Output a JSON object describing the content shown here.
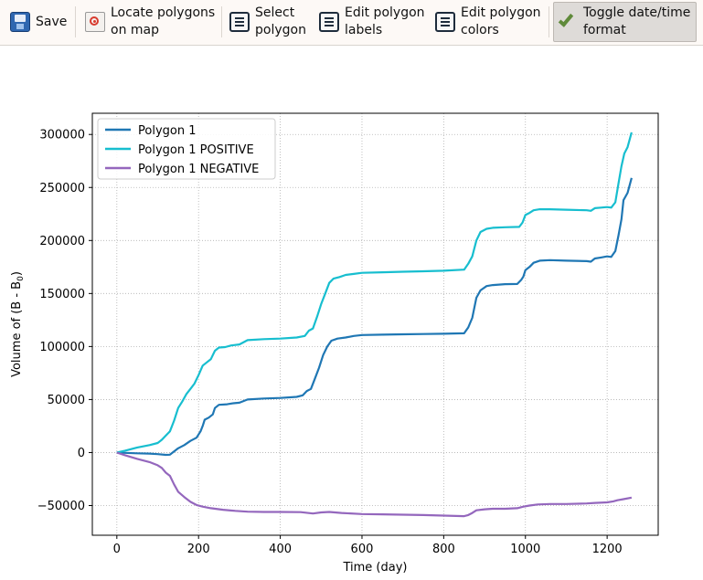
{
  "toolbar": {
    "buttons": [
      {
        "label": "Save",
        "icon": "save-icon"
      },
      {
        "label": "Locate polygons\non map",
        "icon": "locate-icon"
      },
      {
        "label": "Select\npolygon",
        "icon": "list-icon"
      },
      {
        "label": "Edit polygon\nlabels",
        "icon": "list-icon"
      },
      {
        "label": "Edit polygon\ncolors",
        "icon": "list-icon"
      },
      {
        "label": "Toggle date/time\nformat",
        "icon": "check-icon",
        "active": true
      }
    ]
  },
  "chart_data": {
    "type": "line",
    "xlabel": "Time (day)",
    "ylabel": "Volume of (B - B",
    "ylabel_subscript": "0",
    "ylabel_close": ")",
    "xlim": [
      -60,
      1325
    ],
    "ylim": [
      -78000,
      320000
    ],
    "x_ticks": [
      0,
      200,
      400,
      600,
      800,
      1000,
      1200
    ],
    "x_tick_labels": [
      "0",
      "200",
      "400",
      "600",
      "800",
      "1000",
      "1200"
    ],
    "y_ticks": [
      -50000,
      0,
      50000,
      100000,
      150000,
      200000,
      250000,
      300000
    ],
    "y_tick_labels": [
      "−50000",
      "0",
      "50000",
      "100000",
      "150000",
      "200000",
      "250000",
      "300000"
    ],
    "grid": true,
    "legend_position": "top-left",
    "series": [
      {
        "name": "Polygon 1",
        "color": "#1f77b4",
        "points": [
          [
            0,
            0
          ],
          [
            20,
            -300
          ],
          [
            50,
            -700
          ],
          [
            80,
            -1000
          ],
          [
            100,
            -1500
          ],
          [
            120,
            -2200
          ],
          [
            130,
            -2000
          ],
          [
            140,
            1000
          ],
          [
            150,
            4000
          ],
          [
            165,
            7000
          ],
          [
            180,
            11000
          ],
          [
            195,
            14000
          ],
          [
            205,
            20000
          ],
          [
            210,
            25000
          ],
          [
            215,
            31000
          ],
          [
            225,
            33000
          ],
          [
            235,
            36000
          ],
          [
            240,
            42000
          ],
          [
            250,
            45000
          ],
          [
            270,
            45500
          ],
          [
            285,
            46500
          ],
          [
            300,
            47000
          ],
          [
            320,
            50000
          ],
          [
            360,
            51000
          ],
          [
            400,
            51500
          ],
          [
            440,
            52500
          ],
          [
            455,
            54000
          ],
          [
            465,
            58000
          ],
          [
            475,
            60000
          ],
          [
            485,
            70000
          ],
          [
            495,
            80000
          ],
          [
            505,
            92000
          ],
          [
            515,
            100000
          ],
          [
            525,
            105500
          ],
          [
            540,
            107500
          ],
          [
            560,
            108500
          ],
          [
            580,
            110000
          ],
          [
            600,
            110800
          ],
          [
            650,
            111200
          ],
          [
            700,
            111500
          ],
          [
            750,
            111800
          ],
          [
            800,
            112000
          ],
          [
            850,
            112500
          ],
          [
            860,
            118000
          ],
          [
            870,
            127000
          ],
          [
            880,
            146000
          ],
          [
            890,
            153000
          ],
          [
            905,
            157000
          ],
          [
            920,
            158000
          ],
          [
            950,
            158800
          ],
          [
            980,
            159000
          ],
          [
            990,
            163000
          ],
          [
            995,
            166000
          ],
          [
            1000,
            172000
          ],
          [
            1010,
            175000
          ],
          [
            1020,
            179000
          ],
          [
            1035,
            181000
          ],
          [
            1060,
            181500
          ],
          [
            1100,
            181000
          ],
          [
            1150,
            180500
          ],
          [
            1160,
            180000
          ],
          [
            1170,
            183000
          ],
          [
            1185,
            184000
          ],
          [
            1200,
            185000
          ],
          [
            1210,
            184500
          ],
          [
            1220,
            190000
          ],
          [
            1228,
            205000
          ],
          [
            1235,
            220000
          ],
          [
            1240,
            238000
          ],
          [
            1250,
            245000
          ],
          [
            1260,
            259000
          ]
        ]
      },
      {
        "name": "Polygon 1 POSITIVE",
        "color": "#17becf",
        "points": [
          [
            0,
            0
          ],
          [
            20,
            1800
          ],
          [
            50,
            4800
          ],
          [
            80,
            7000
          ],
          [
            100,
            9000
          ],
          [
            110,
            12000
          ],
          [
            120,
            16000
          ],
          [
            130,
            20000
          ],
          [
            140,
            30000
          ],
          [
            150,
            42000
          ],
          [
            160,
            48000
          ],
          [
            170,
            55000
          ],
          [
            180,
            60000
          ],
          [
            190,
            65000
          ],
          [
            200,
            73000
          ],
          [
            210,
            82000
          ],
          [
            220,
            85000
          ],
          [
            230,
            88000
          ],
          [
            240,
            96000
          ],
          [
            250,
            99000
          ],
          [
            265,
            99500
          ],
          [
            280,
            101000
          ],
          [
            300,
            102000
          ],
          [
            320,
            106000
          ],
          [
            360,
            107000
          ],
          [
            400,
            107500
          ],
          [
            440,
            108500
          ],
          [
            460,
            110000
          ],
          [
            470,
            115000
          ],
          [
            480,
            117000
          ],
          [
            490,
            128000
          ],
          [
            500,
            140000
          ],
          [
            510,
            150000
          ],
          [
            520,
            160000
          ],
          [
            530,
            164000
          ],
          [
            545,
            165500
          ],
          [
            560,
            167500
          ],
          [
            580,
            168500
          ],
          [
            600,
            169500
          ],
          [
            650,
            170000
          ],
          [
            700,
            170500
          ],
          [
            750,
            171000
          ],
          [
            800,
            171500
          ],
          [
            850,
            172500
          ],
          [
            860,
            178000
          ],
          [
            870,
            185000
          ],
          [
            880,
            200000
          ],
          [
            890,
            208000
          ],
          [
            905,
            211000
          ],
          [
            920,
            212000
          ],
          [
            950,
            212500
          ],
          [
            985,
            212800
          ],
          [
            993,
            217000
          ],
          [
            1000,
            224000
          ],
          [
            1010,
            226000
          ],
          [
            1020,
            228500
          ],
          [
            1035,
            229500
          ],
          [
            1060,
            229500
          ],
          [
            1100,
            229000
          ],
          [
            1150,
            228500
          ],
          [
            1160,
            228000
          ],
          [
            1170,
            230500
          ],
          [
            1185,
            231000
          ],
          [
            1200,
            231500
          ],
          [
            1210,
            231000
          ],
          [
            1220,
            236000
          ],
          [
            1228,
            254000
          ],
          [
            1235,
            270000
          ],
          [
            1242,
            282000
          ],
          [
            1250,
            288000
          ],
          [
            1260,
            302000
          ]
        ]
      },
      {
        "name": "Polygon 1 NEGATIVE",
        "color": "#9467bd",
        "points": [
          [
            0,
            0
          ],
          [
            20,
            -2500
          ],
          [
            50,
            -6000
          ],
          [
            80,
            -9000
          ],
          [
            100,
            -12000
          ],
          [
            110,
            -14500
          ],
          [
            120,
            -19000
          ],
          [
            130,
            -22000
          ],
          [
            140,
            -30000
          ],
          [
            150,
            -37000
          ],
          [
            165,
            -42000
          ],
          [
            180,
            -46500
          ],
          [
            195,
            -49500
          ],
          [
            210,
            -51000
          ],
          [
            230,
            -52500
          ],
          [
            260,
            -54000
          ],
          [
            290,
            -55000
          ],
          [
            320,
            -55800
          ],
          [
            360,
            -56000
          ],
          [
            400,
            -56000
          ],
          [
            450,
            -56200
          ],
          [
            480,
            -57500
          ],
          [
            500,
            -56500
          ],
          [
            520,
            -56000
          ],
          [
            550,
            -57000
          ],
          [
            600,
            -58000
          ],
          [
            650,
            -58300
          ],
          [
            700,
            -58600
          ],
          [
            750,
            -59000
          ],
          [
            800,
            -59500
          ],
          [
            850,
            -60000
          ],
          [
            860,
            -59000
          ],
          [
            870,
            -57000
          ],
          [
            880,
            -54500
          ],
          [
            900,
            -53500
          ],
          [
            920,
            -53000
          ],
          [
            950,
            -53000
          ],
          [
            980,
            -52500
          ],
          [
            995,
            -51000
          ],
          [
            1010,
            -50000
          ],
          [
            1030,
            -49000
          ],
          [
            1060,
            -48500
          ],
          [
            1100,
            -48500
          ],
          [
            1150,
            -48000
          ],
          [
            1170,
            -47500
          ],
          [
            1200,
            -47000
          ],
          [
            1215,
            -46000
          ],
          [
            1225,
            -45000
          ],
          [
            1240,
            -44000
          ],
          [
            1260,
            -42500
          ]
        ]
      }
    ]
  }
}
